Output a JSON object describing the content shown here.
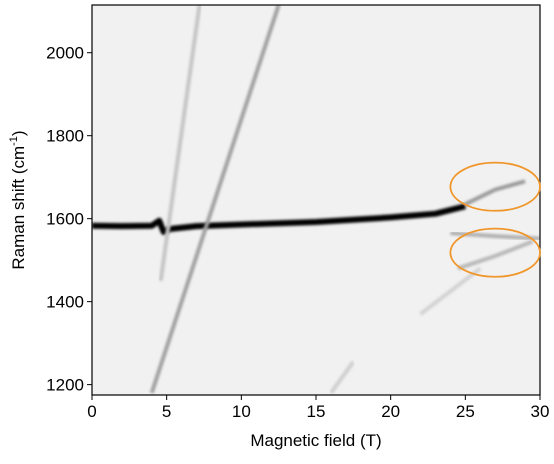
{
  "chart_data": {
    "type": "line",
    "xlabel": "Magnetic field (T)",
    "ylabel": [
      "Raman shift (cm",
      "-1",
      ")"
    ],
    "xlim": [
      0,
      30
    ],
    "ylim": [
      1175,
      2115
    ],
    "xticks": [
      0,
      5,
      10,
      15,
      20,
      25,
      30
    ],
    "yticks": [
      1200,
      1400,
      1600,
      1800,
      2000
    ],
    "background": "#f1f1f1",
    "series": [
      {
        "color": "#000000",
        "x": [
          0,
          2,
          4,
          4.5,
          4.8,
          5.2,
          7,
          10,
          15,
          20,
          23,
          25
        ],
        "values": [
          1583,
          1582,
          1583,
          1595,
          1568,
          1575,
          1582,
          1586,
          1592,
          1603,
          1612,
          1630
        ]
      },
      {
        "color": "#9a9a9a",
        "x": [
          25,
          27,
          29
        ],
        "values": [
          1635,
          1670,
          1690
        ]
      },
      {
        "color": "#b0b0b0",
        "x": [
          24,
          27,
          30
        ],
        "values": [
          1565,
          1558,
          1552
        ]
      },
      {
        "color": "#b8b8b8",
        "x": [
          24.5,
          27,
          29.5
        ],
        "values": [
          1480,
          1510,
          1545
        ]
      },
      {
        "color": "#a0a0a0",
        "x": [
          4,
          12.5
        ],
        "values": [
          1180,
          2115
        ]
      },
      {
        "color": "#c4c4c4",
        "x": [
          4.6,
          7.2
        ],
        "values": [
          1450,
          2115
        ]
      },
      {
        "color": "#cfcfcf",
        "x": [
          16,
          17.5
        ],
        "values": [
          1180,
          1255
        ]
      },
      {
        "color": "#d2d2d2",
        "x": [
          22,
          26
        ],
        "values": [
          1370,
          1480
        ]
      }
    ],
    "annotations": [
      {
        "shape": "ellipse",
        "color": "#f0962a",
        "center_x": 27,
        "center_y": 1677,
        "rx": 3,
        "ry": 58
      },
      {
        "shape": "ellipse",
        "color": "#f0962a",
        "center_x": 27,
        "center_y": 1518,
        "rx": 3,
        "ry": 58
      }
    ]
  }
}
